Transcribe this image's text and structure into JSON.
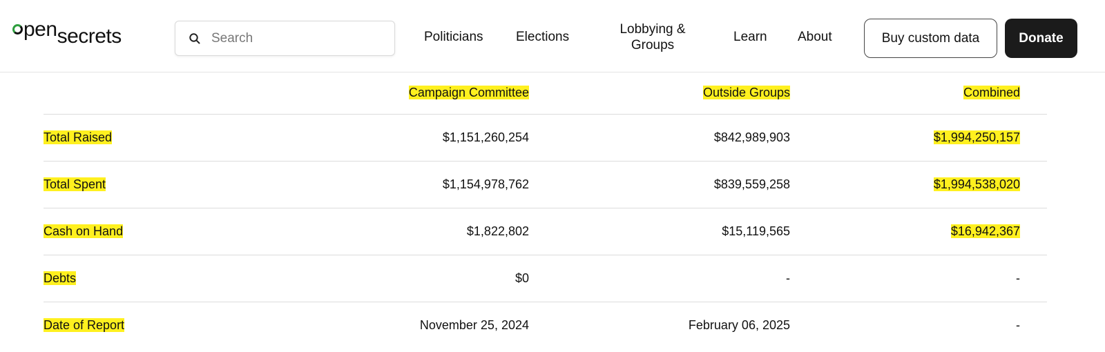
{
  "header": {
    "logo": {
      "open": "pen",
      "secrets": "secrets"
    },
    "search": {
      "placeholder": "Search"
    },
    "nav": {
      "politicians": "Politicians",
      "elections": "Elections",
      "lobbying_line1": "Lobbying &",
      "lobbying_line2": "Groups",
      "learn": "Learn",
      "about": "About"
    },
    "buy_button": "Buy custom data",
    "donate_button": "Donate"
  },
  "table": {
    "columns": [
      "",
      "Campaign Committee",
      "Outside Groups",
      "Combined"
    ],
    "rows": [
      {
        "label": "Total Raised",
        "campaign": "$1,151,260,254",
        "outside": "$842,989,903",
        "combined": "$1,994,250,157"
      },
      {
        "label": "Total Spent",
        "campaign": "$1,154,978,762",
        "outside": "$839,559,258",
        "combined": "$1,994,538,020"
      },
      {
        "label": "Cash on Hand",
        "campaign": "$1,822,802",
        "outside": "$15,119,565",
        "combined": "$16,942,367"
      },
      {
        "label": "Debts",
        "campaign": "$0",
        "outside": "-",
        "combined": "-"
      },
      {
        "label": "Date of Report",
        "campaign": "November 25, 2024",
        "outside": "February 06, 2025",
        "combined": "-"
      }
    ]
  },
  "colors": {
    "highlight": "#fff01f",
    "accent": "#2e9e3e",
    "donate_bg": "#1b1b1b"
  },
  "icons": {
    "search": "search-icon"
  }
}
